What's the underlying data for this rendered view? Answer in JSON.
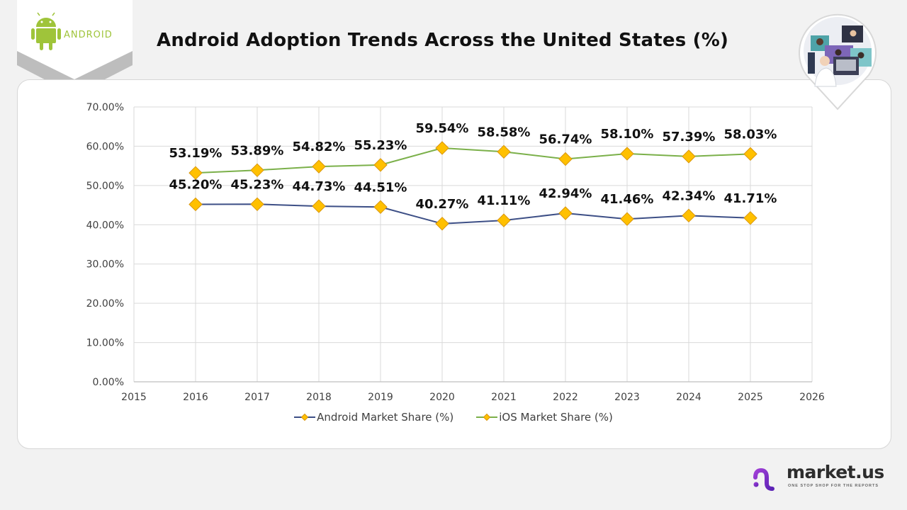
{
  "header": {
    "title": "Android Adoption Trends Across the United States (%)",
    "logo_text": "ANDROID"
  },
  "brand": {
    "name": "market.us",
    "tagline": "ONE STOP SHOP FOR THE REPORTS"
  },
  "colors": {
    "android_line": "#3d4f86",
    "ios_line": "#7bb04a",
    "marker_fill": "#ffc000",
    "marker_stroke": "#d9960b",
    "android_green": "#9fc43a",
    "brand_purple": "#7a2fc8"
  },
  "chart_data": {
    "type": "line",
    "title": "Android Adoption Trends Across the United States (%)",
    "xlabel": "",
    "ylabel": "",
    "x": [
      2016,
      2017,
      2018,
      2019,
      2020,
      2021,
      2022,
      2023,
      2024,
      2025
    ],
    "xlim": [
      2015,
      2026
    ],
    "x_ticks": [
      "2015",
      "2016",
      "2017",
      "2018",
      "2019",
      "2020",
      "2021",
      "2022",
      "2023",
      "2024",
      "2025",
      "2026"
    ],
    "ylim": [
      0,
      70
    ],
    "y_ticks": [
      "0.00%",
      "10.00%",
      "20.00%",
      "30.00%",
      "40.00%",
      "50.00%",
      "60.00%",
      "70.00%"
    ],
    "grid": true,
    "legend_position": "bottom",
    "series": [
      {
        "name": "Android Market Share (%)",
        "values": [
          45.2,
          45.23,
          44.73,
          44.51,
          40.27,
          41.11,
          42.94,
          41.46,
          42.34,
          41.71
        ],
        "labels": [
          "45.20%",
          "45.23%",
          "44.73%",
          "44.51%",
          "40.27%",
          "41.11%",
          "42.94%",
          "41.46%",
          "42.34%",
          "41.71%"
        ]
      },
      {
        "name": "iOS Market Share (%)",
        "values": [
          53.19,
          53.89,
          54.82,
          55.23,
          59.54,
          58.58,
          56.74,
          58.1,
          57.39,
          58.03
        ],
        "labels": [
          "53.19%",
          "53.89%",
          "54.82%",
          "55.23%",
          "59.54%",
          "58.58%",
          "56.74%",
          "58.10%",
          "57.39%",
          "58.03%"
        ]
      }
    ]
  }
}
